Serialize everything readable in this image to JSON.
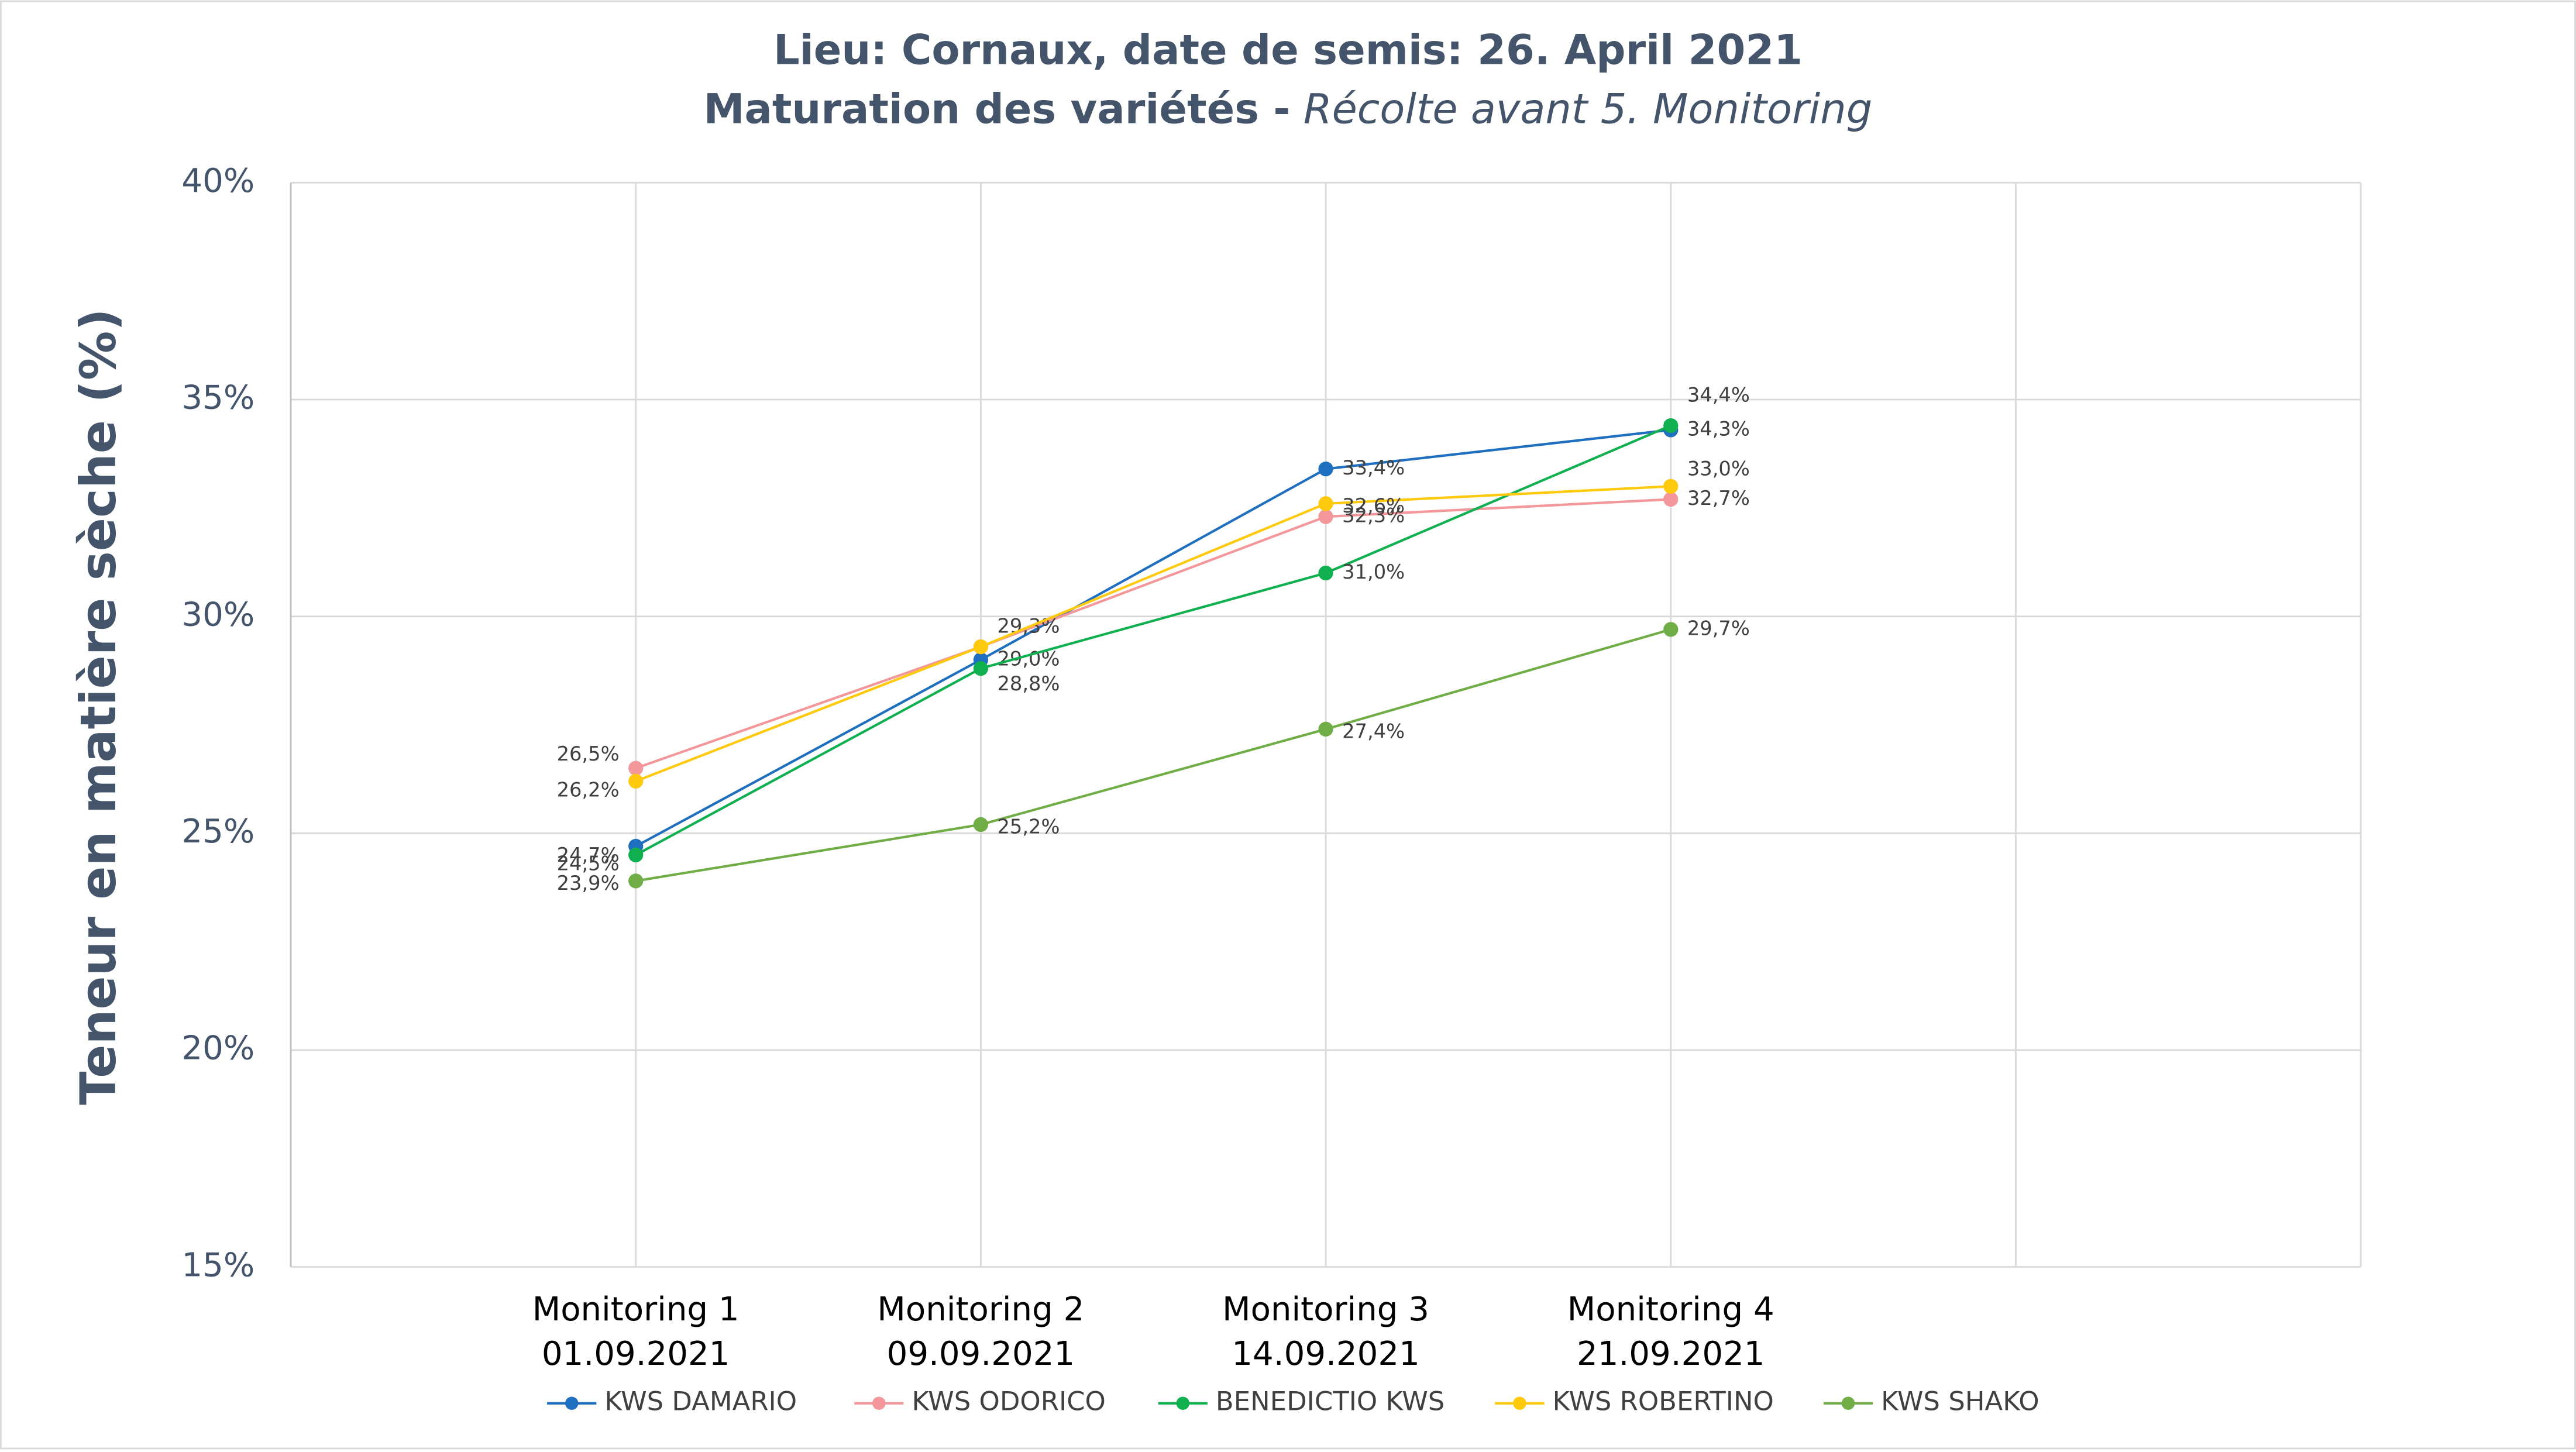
{
  "chart_data": {
    "type": "line",
    "title": "Lieu: Cornaux, date de semis: 26. April 2021",
    "subtitle": "Maturation des variétés -",
    "subtitle_italic": "Récolte avant 5. Monitoring",
    "y_label": "Teneur en matière sèche (%)",
    "categories": [
      "Monitoring 1",
      "Monitoring 2",
      "Monitoring 3",
      "Monitoring 4",
      null
    ],
    "dates": [
      "01.09.2021",
      "09.09.2021",
      "14.09.2021",
      "21.09.2021",
      null
    ],
    "ylim": [
      15,
      40
    ],
    "yticks": [
      {
        "value": 15,
        "label": "15%"
      },
      {
        "value": 20,
        "label": "20%"
      },
      {
        "value": 25,
        "label": "25%"
      },
      {
        "value": 30,
        "label": "30%"
      },
      {
        "value": 35,
        "label": "35%"
      },
      {
        "value": 40,
        "label": "40%"
      }
    ],
    "grid": true,
    "legend": "bottom",
    "series": [
      {
        "name": "KWS DAMARIO",
        "color": "#1f6fc0",
        "values": [
          24.7,
          29.0,
          33.4,
          34.3,
          null
        ],
        "value_labels": [
          "24,7%",
          "29,0%",
          "33,4%",
          "34,3%",
          null
        ]
      },
      {
        "name": "KWS ODORICO",
        "color": "#f4979a",
        "values": [
          26.5,
          29.3,
          32.3,
          32.7,
          null
        ],
        "value_labels": [
          "26,5%",
          "29,3%",
          "32,3%",
          "32,7%",
          null
        ]
      },
      {
        "name": "BENEDICTIO KWS",
        "color": "#10b050",
        "values": [
          24.5,
          28.8,
          31.0,
          34.4,
          null
        ],
        "value_labels": [
          "24,5%",
          "28,8%",
          "31,0%",
          "34,4%",
          null
        ]
      },
      {
        "name": "KWS ROBERTINO",
        "color": "#ffc90e",
        "values": [
          26.2,
          29.3,
          32.6,
          33.0,
          null
        ],
        "value_labels": [
          "26,2%",
          null,
          "32,6%",
          "33,0%",
          null
        ]
      },
      {
        "name": "KWS SHAKO",
        "color": "#70ad47",
        "values": [
          23.9,
          25.2,
          27.4,
          29.7,
          null
        ],
        "value_labels": [
          "23,9%",
          "25,2%",
          "27,4%",
          "29,7%",
          null
        ]
      }
    ]
  }
}
